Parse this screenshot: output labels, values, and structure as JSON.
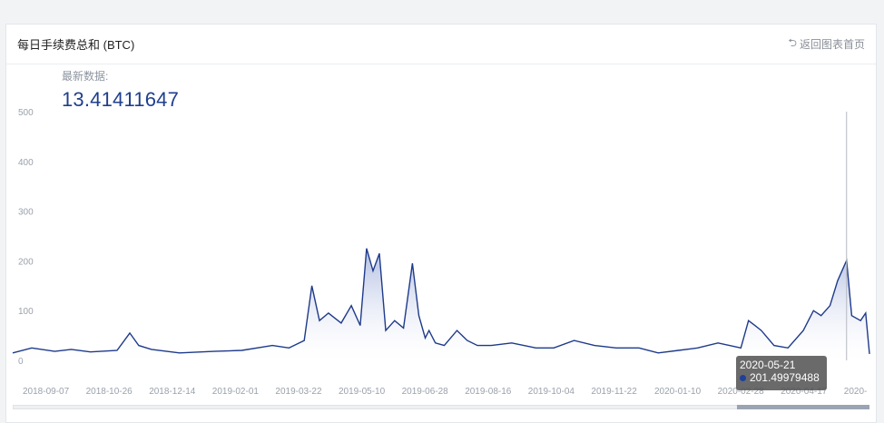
{
  "header": {
    "title": "每日手续费总和 (BTC)",
    "back_label": "返回图表首页",
    "back_icon": "return-arrow-icon"
  },
  "latest": {
    "label": "最新数据:",
    "value": "13.41411647"
  },
  "tooltip": {
    "date": "2020-05-21",
    "value": "201.49979488"
  },
  "colors": {
    "line": "#1e3a8a",
    "area_top": "#6f86c9",
    "grid_text": "#9aa1ab"
  },
  "chart_data": {
    "type": "area",
    "title": "每日手续费总和 (BTC)",
    "ylim": [
      0,
      500
    ],
    "y_ticks": [
      "0",
      "100",
      "200",
      "300",
      "400",
      "500"
    ],
    "x_tick_labels": [
      "2018-09-07",
      "2018-10-26",
      "2018-12-14",
      "2019-02-01",
      "2019-03-22",
      "2019-05-10",
      "2019-06-28",
      "2019-08-16",
      "2019-10-04",
      "2019-11-22",
      "2020-01-10",
      "2020-02-28",
      "2020-04-17",
      "2020-"
    ],
    "x": [
      "2018-08-05",
      "2018-08-20",
      "2018-09-07",
      "2018-09-20",
      "2018-10-05",
      "2018-10-26",
      "2018-11-05",
      "2018-11-12",
      "2018-11-22",
      "2018-12-14",
      "2019-01-10",
      "2019-02-01",
      "2019-02-25",
      "2019-03-10",
      "2019-03-22",
      "2019-03-28",
      "2019-04-03",
      "2019-04-10",
      "2019-04-20",
      "2019-04-28",
      "2019-05-05",
      "2019-05-10",
      "2019-05-15",
      "2019-05-20",
      "2019-05-25",
      "2019-06-01",
      "2019-06-08",
      "2019-06-15",
      "2019-06-20",
      "2019-06-25",
      "2019-06-28",
      "2019-07-03",
      "2019-07-10",
      "2019-07-20",
      "2019-07-28",
      "2019-08-05",
      "2019-08-16",
      "2019-09-01",
      "2019-09-20",
      "2019-10-04",
      "2019-10-20",
      "2019-11-05",
      "2019-11-22",
      "2019-12-10",
      "2019-12-25",
      "2020-01-10",
      "2020-01-25",
      "2020-02-10",
      "2020-02-28",
      "2020-03-05",
      "2020-03-10",
      "2020-03-15",
      "2020-03-25",
      "2020-04-05",
      "2020-04-17",
      "2020-04-25",
      "2020-05-01",
      "2020-05-08",
      "2020-05-14",
      "2020-05-21",
      "2020-05-25",
      "2020-06-01",
      "2020-06-05",
      "2020-06-08"
    ],
    "series": [
      {
        "values": [
          15,
          25,
          18,
          22,
          17,
          20,
          55,
          30,
          22,
          15,
          18,
          20,
          30,
          25,
          40,
          150,
          80,
          95,
          75,
          110,
          70,
          225,
          180,
          215,
          60,
          80,
          65,
          195,
          90,
          45,
          60,
          35,
          30,
          60,
          40,
          30,
          30,
          35,
          25,
          25,
          40,
          30,
          25,
          25,
          15,
          20,
          25,
          35,
          25,
          80,
          70,
          60,
          30,
          25,
          60,
          100,
          90,
          110,
          160,
          201,
          90,
          80,
          95,
          13
        ]
      }
    ]
  }
}
